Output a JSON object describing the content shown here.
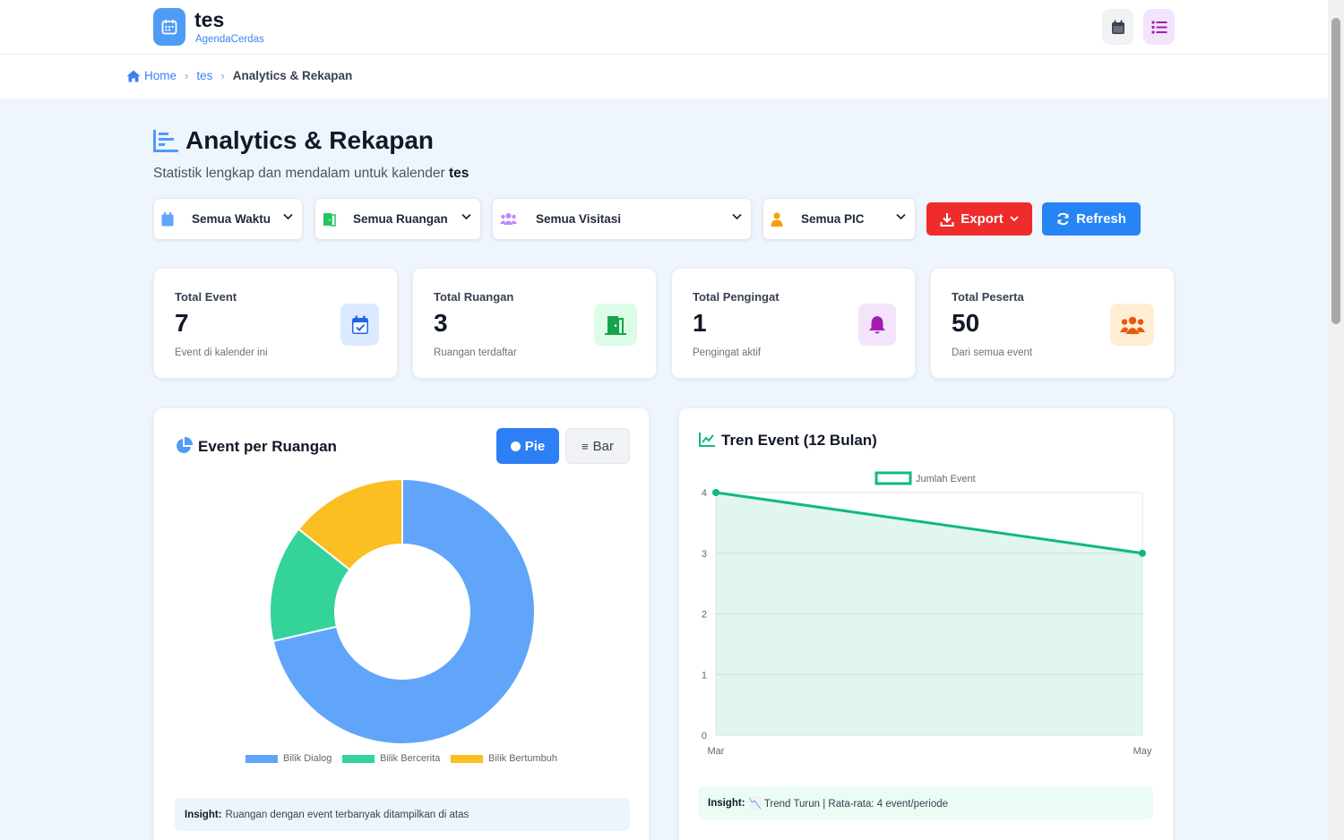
{
  "header": {
    "app_title": "tes",
    "app_subtitle": "AgendaCerdas",
    "icons": [
      "calendar-icon",
      "list-icon"
    ]
  },
  "breadcrumb": {
    "home": "Home",
    "calendar": "tes",
    "current": "Analytics & Rekapan"
  },
  "page": {
    "title": "Analytics & Rekapan",
    "subtitle_prefix": "Statistik lengkap dan mendalam untuk kalender",
    "subtitle_calendar": "tes"
  },
  "filters": {
    "time": "Semua Waktu",
    "room": "Semua Ruangan",
    "visitation": "Semua Visitasi",
    "pic": "Semua PIC",
    "export_label": "Export",
    "refresh_label": "Refresh"
  },
  "stats": [
    {
      "label": "Total Event",
      "value": "7",
      "desc": "Event di kalender ini",
      "icon": "calendar-check-icon",
      "color": "#2563eb"
    },
    {
      "label": "Total Ruangan",
      "value": "3",
      "desc": "Ruangan terdaftar",
      "icon": "door-open-icon",
      "color": "#16a34a"
    },
    {
      "label": "Total Pengingat",
      "value": "1",
      "desc": "Pengingat aktif",
      "icon": "bell-icon",
      "color": "#a21caf"
    },
    {
      "label": "Total Peserta",
      "value": "50",
      "desc": "Dari semua event",
      "icon": "users-icon",
      "color": "#ea580c"
    }
  ],
  "room_chart": {
    "title": "Event per Ruangan",
    "toggle_pie": "Pie",
    "toggle_bar": "Bar",
    "insight_label": "Insight:",
    "insight_text": "Ruangan dengan event terbanyak ditampilkan di atas"
  },
  "trend_chart": {
    "title": "Tren Event (12 Bulan)",
    "insight_label": "Insight:",
    "insight_text": "📉 Trend Turun | Rata-rata: 4 event/periode"
  },
  "chart_data": [
    {
      "type": "pie",
      "style": "doughnut",
      "categories": [
        "Bilik Dialog",
        "Bilik Bercerita",
        "Bilik Bertumbuh"
      ],
      "values": [
        5,
        1,
        1
      ],
      "colors": [
        "#60a5fa",
        "#34d399",
        "#fbbf24"
      ],
      "legend": "bottom"
    },
    {
      "type": "line",
      "x": [
        "Mar",
        "May"
      ],
      "series": [
        {
          "name": "Jumlah Event",
          "values": [
            4,
            3
          ],
          "color": "#10b981"
        }
      ],
      "ylim": [
        0,
        4
      ],
      "yticks": [
        0,
        1,
        2,
        3,
        4
      ],
      "grid": true,
      "fill": true,
      "legend": "top"
    }
  ]
}
